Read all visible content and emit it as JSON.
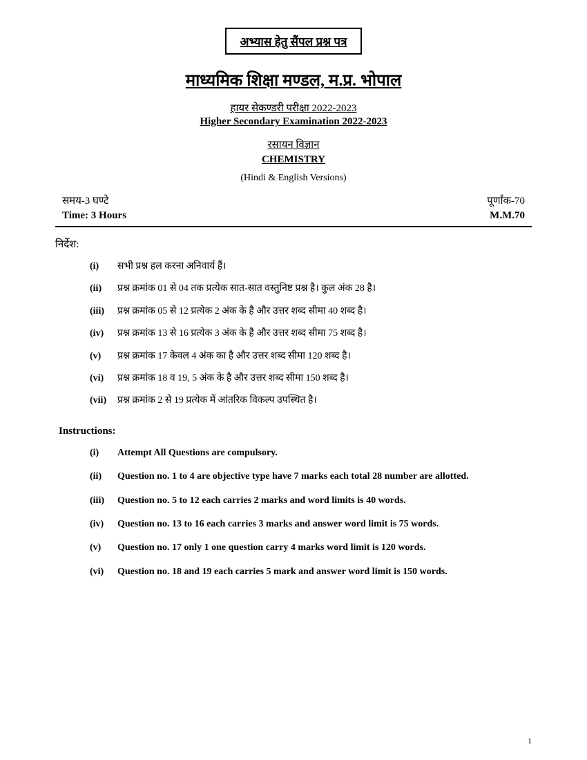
{
  "header": {
    "box_text": "अभ्यास हेतु सैंपल प्रश्न पत्र",
    "board_name": "माध्यमिक शिक्षा मण्डल, म.प्र. भोपाल",
    "exam_name_hi": "हायर सेकण्डरी परीक्षा 2022-2023",
    "exam_name_en": "Higher Secondary Examination 2022-2023",
    "subject_hi": "रसायन विज्ञान",
    "subject_en": "CHEMISTRY",
    "versions": "(Hindi & English Versions)",
    "time_hi": "समय-3 घण्टे",
    "marks_hi": "पूर्णांक-70",
    "time_en": "Time: 3 Hours",
    "marks_en": "M.M.70"
  },
  "instructions_hi": {
    "label": "निर्देश:",
    "items": [
      {
        "num": "(i)",
        "text": "सभी प्रश्न हल करना अनिवार्य हैं।"
      },
      {
        "num": "(ii)",
        "text": "प्रश्न क्रमांक 01 से 04 तक प्रत्येक सात-सात वस्तुनिष्ट प्रश्न है। कुल अंक 28 है।"
      },
      {
        "num": "(iii)",
        "text": "प्रश्न क्रमांक 05 से 12 प्रत्येक 2 अंक के है और उत्तर शब्द सीमा 40 शब्द है।"
      },
      {
        "num": "(iv)",
        "text": "प्रश्न क्रमांक 13 से 16 प्रत्येक 3 अंक के है और उत्तर शब्द सीमा 75 शब्द है।"
      },
      {
        "num": "(v)",
        "text": "प्रश्न क्रमांक 17 केवल 4 अंक का है और उत्तर शब्द सीमा 120 शब्द है।"
      },
      {
        "num": "(vi)",
        "text": "प्रश्न क्रमांक 18 व 19, 5 अंक के है और उत्तर शब्द सीमा 150 शब्द है।"
      },
      {
        "num": "(vii)",
        "text": "प्रश्न क्रमांक 2 से 19 प्रत्येक में आंतरिक विकल्प उपस्थित है।"
      }
    ]
  },
  "instructions_en": {
    "label": "Instructions:",
    "items": [
      {
        "num": "(i)",
        "text": "Attempt All Questions are compulsory."
      },
      {
        "num": "(ii)",
        "text": "Question no. 1 to 4 are objective type have 7 marks each total 28 number are allotted."
      },
      {
        "num": "(iii)",
        "text": "Question no. 5 to 12 each carries 2 marks and word limits is 40 words."
      },
      {
        "num": "(iv)",
        "text": "Question no. 13 to 16 each carries 3 marks and answer word limit is 75 words."
      },
      {
        "num": "(v)",
        "text": "Question no. 17 only 1 one question carry 4 marks word limit is 120 words."
      },
      {
        "num": "(vi)",
        "text": "Question no. 18 and 19 each carries 5 mark and answer word limit is 150 words."
      }
    ]
  },
  "page_number": "1"
}
